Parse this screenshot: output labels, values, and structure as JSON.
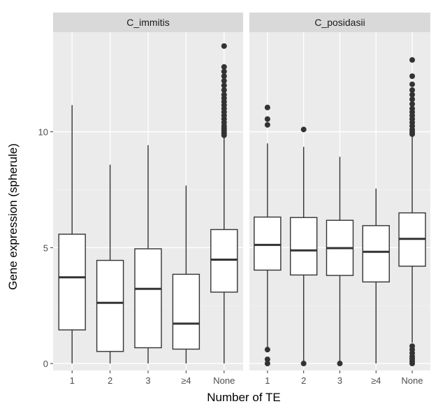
{
  "chart_data": {
    "type": "boxplot",
    "xlabel": "Number of TE",
    "ylabel": "Gene expression (spherule)",
    "categories": [
      "1",
      "2",
      "3",
      "≥4",
      "None"
    ],
    "ylim": [
      -0.3,
      14.3
    ],
    "yticks": [
      0,
      5,
      10
    ],
    "grid": true,
    "facets": [
      {
        "name": "C_immitis",
        "boxes": [
          {
            "category": "1",
            "low": 0.0,
            "q1": 1.45,
            "median": 3.72,
            "q3": 5.58,
            "high": 11.15,
            "outliers": []
          },
          {
            "category": "2",
            "low": 0.0,
            "q1": 0.52,
            "median": 2.62,
            "q3": 4.45,
            "high": 8.58,
            "outliers": []
          },
          {
            "category": "3",
            "low": 0.0,
            "q1": 0.68,
            "median": 3.22,
            "q3": 4.95,
            "high": 9.42,
            "outliers": []
          },
          {
            "category": "≥4",
            "low": 0.0,
            "q1": 0.62,
            "median": 1.72,
            "q3": 3.85,
            "high": 7.68,
            "outliers": []
          },
          {
            "category": "None",
            "low": 0.0,
            "q1": 3.08,
            "median": 4.48,
            "q3": 5.78,
            "high": 9.75,
            "outliers": [
              9.85,
              9.95,
              10.05,
              10.15,
              10.25,
              10.4,
              10.55,
              10.7,
              10.85,
              11.0,
              11.15,
              11.3,
              11.45,
              11.6,
              11.8,
              12.0,
              12.2,
              12.4,
              12.6,
              12.8,
              13.7
            ]
          }
        ]
      },
      {
        "name": "C_posidasii",
        "boxes": [
          {
            "category": "1",
            "low": 0.58,
            "q1": 4.03,
            "median": 5.12,
            "q3": 6.32,
            "high": 9.5,
            "outliers": [
              0.0,
              0.18,
              0.6,
              10.3,
              10.55,
              11.05
            ]
          },
          {
            "category": "2",
            "low": 0.0,
            "q1": 3.82,
            "median": 4.88,
            "q3": 6.3,
            "high": 9.35,
            "outliers": [
              0.0,
              10.1
            ]
          },
          {
            "category": "3",
            "low": 0.0,
            "q1": 3.8,
            "median": 4.98,
            "q3": 6.18,
            "high": 8.92,
            "outliers": [
              0.0
            ]
          },
          {
            "category": "≥4",
            "low": 0.0,
            "q1": 3.52,
            "median": 4.82,
            "q3": 5.95,
            "high": 7.55,
            "outliers": []
          },
          {
            "category": "None",
            "low": 0.9,
            "q1": 4.2,
            "median": 5.38,
            "q3": 6.5,
            "high": 9.8,
            "outliers": [
              0.0,
              0.1,
              0.2,
              0.3,
              0.45,
              0.6,
              0.75,
              9.9,
              10.0,
              10.1,
              10.25,
              10.4,
              10.55,
              10.7,
              10.85,
              11.0,
              11.2,
              11.4,
              11.6,
              11.8,
              12.05,
              12.4,
              13.1
            ]
          }
        ]
      }
    ]
  },
  "colors": {
    "panel": "#ebebeb",
    "strip": "#d9d9d9",
    "grid_major": "#ffffff",
    "grid_minor": "#f5f5f5",
    "box_fill": "#ffffff",
    "box_line": "#333333",
    "point": "#333333",
    "tick": "#333333"
  }
}
